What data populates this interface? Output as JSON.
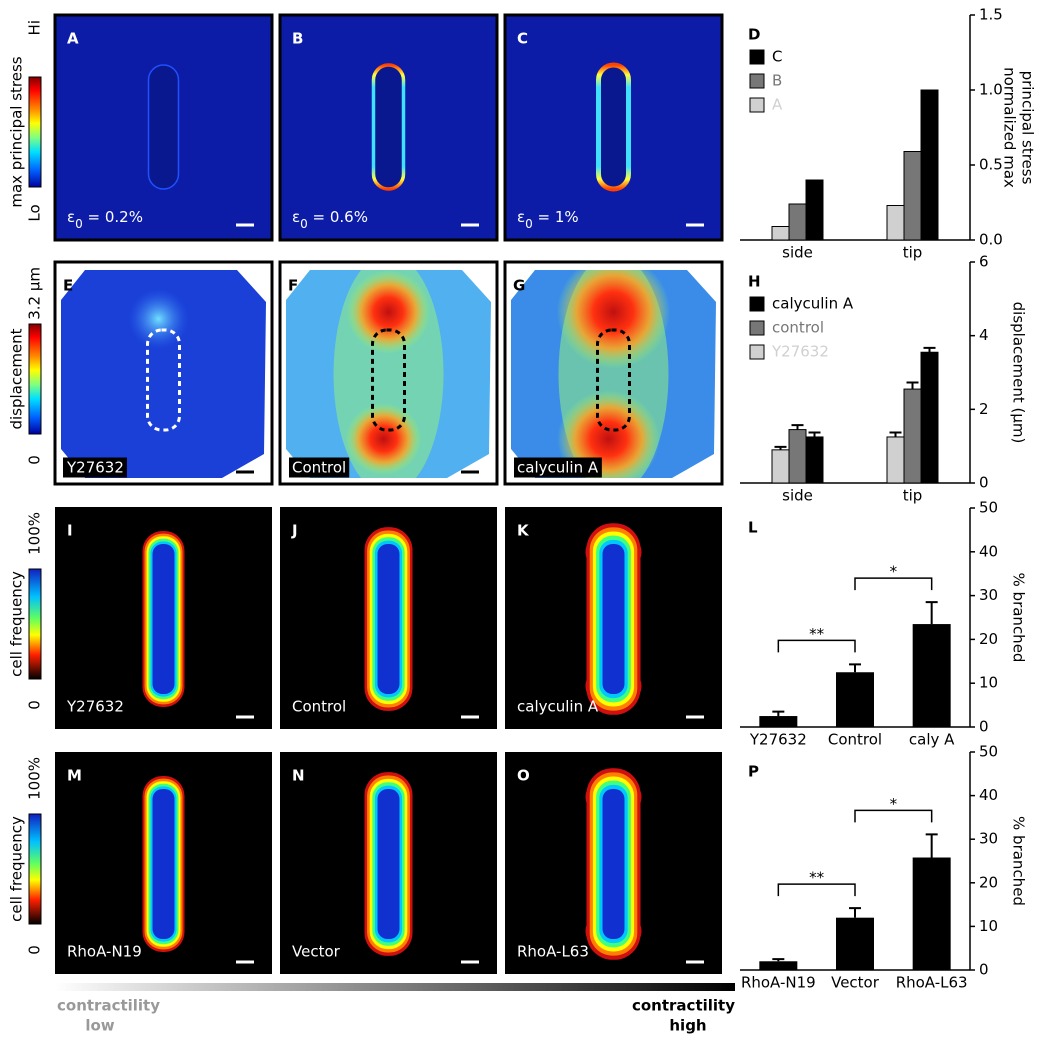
{
  "stress_panels": [
    {
      "letter": "A",
      "symbol": "ε",
      "subscript": "0",
      "text": " = 0.2%"
    },
    {
      "letter": "B",
      "symbol": "ε",
      "subscript": "0",
      "text": " = 0.6%"
    },
    {
      "letter": "C",
      "symbol": "ε",
      "subscript": "0",
      "text": " = 1%"
    }
  ],
  "displacement_panels": [
    {
      "letter": "E",
      "label": "Y27632"
    },
    {
      "letter": "F",
      "label": "Control"
    },
    {
      "letter": "G",
      "label": "calyculin A"
    }
  ],
  "frequency_panels_drug": [
    {
      "letter": "I",
      "label": "Y27632"
    },
    {
      "letter": "J",
      "label": "Control"
    },
    {
      "letter": "K",
      "label": "calyculin A"
    }
  ],
  "frequency_panels_rhoa": [
    {
      "letter": "M",
      "label": "RhoA-N19"
    },
    {
      "letter": "N",
      "label": "Vector"
    },
    {
      "letter": "O",
      "label": "RhoA-L63"
    }
  ],
  "colorbars": [
    {
      "top": "Hi",
      "bottom": "Lo",
      "label": "max principal stress"
    },
    {
      "top": "3.2 μm",
      "bottom": "0",
      "label": "displacement"
    },
    {
      "top": "100%",
      "bottom": "0",
      "label": "cell frequency"
    },
    {
      "top": "100%",
      "bottom": "0",
      "label": "cell frequency"
    }
  ],
  "contractility": {
    "low": {
      "title": "contractility",
      "level": "low"
    },
    "high": {
      "title": "contractility",
      "level": "high"
    }
  },
  "chart_data": [
    {
      "type": "bar",
      "panel": "D",
      "categories": [
        "side",
        "tip"
      ],
      "series": [
        {
          "name": "C",
          "color": "#000000",
          "values": [
            0.4,
            1.0
          ]
        },
        {
          "name": "B",
          "color": "#777777",
          "values": [
            0.24,
            0.59
          ]
        },
        {
          "name": "A",
          "color": "#d0d0d0",
          "values": [
            0.09,
            0.23
          ]
        }
      ],
      "ylim": [
        0,
        1.5
      ],
      "yticks": [
        {
          "value": 0,
          "label": "0.0"
        },
        {
          "value": 0.5,
          "label": "0.5"
        },
        {
          "value": 1.0,
          "label": "1.0"
        },
        {
          "value": 1.5,
          "label": "1.5"
        }
      ],
      "ylabel": [
        "normalized max",
        "principal stress"
      ],
      "legend": "upper left"
    },
    {
      "type": "bar",
      "panel": "H",
      "categories": [
        "side",
        "tip"
      ],
      "series": [
        {
          "name": "calyculin A",
          "color": "#000000",
          "values": [
            1.25,
            3.55
          ],
          "errors": [
            0.12,
            0.12
          ]
        },
        {
          "name": "control",
          "color": "#777777",
          "values": [
            1.45,
            2.55
          ],
          "errors": [
            0.12,
            0.18
          ]
        },
        {
          "name": "Y27632",
          "color": "#d0d0d0",
          "values": [
            0.9,
            1.25
          ],
          "errors": [
            0.08,
            0.12
          ]
        }
      ],
      "ylim": [
        0,
        6
      ],
      "yticks": [
        0,
        2,
        4,
        6
      ],
      "ylabel": [
        "displacement (μm)"
      ],
      "legend": "upper left"
    },
    {
      "type": "bar",
      "panel": "L",
      "categories": [
        "Y27632",
        "Control",
        "caly A"
      ],
      "values": [
        2.5,
        12.5,
        23.5
      ],
      "errors": [
        1.0,
        1.8,
        5.0
      ],
      "color": "#000000",
      "ylim": [
        0,
        50
      ],
      "yticks": [
        0,
        10,
        20,
        30,
        40,
        50
      ],
      "ylabel": [
        "% branched"
      ],
      "annotations": [
        "**",
        "*"
      ]
    },
    {
      "type": "bar",
      "panel": "P",
      "categories": [
        "RhoA-N19",
        "Vector",
        "RhoA-L63"
      ],
      "values": [
        2.0,
        12.0,
        25.8
      ],
      "errors": [
        0.5,
        2.2,
        5.3
      ],
      "color": "#000000",
      "ylim": [
        0,
        50
      ],
      "yticks": [
        0,
        10,
        20,
        30,
        40,
        50
      ],
      "ylabel": [
        "% branched"
      ],
      "annotations": [
        "**",
        "*"
      ]
    }
  ]
}
